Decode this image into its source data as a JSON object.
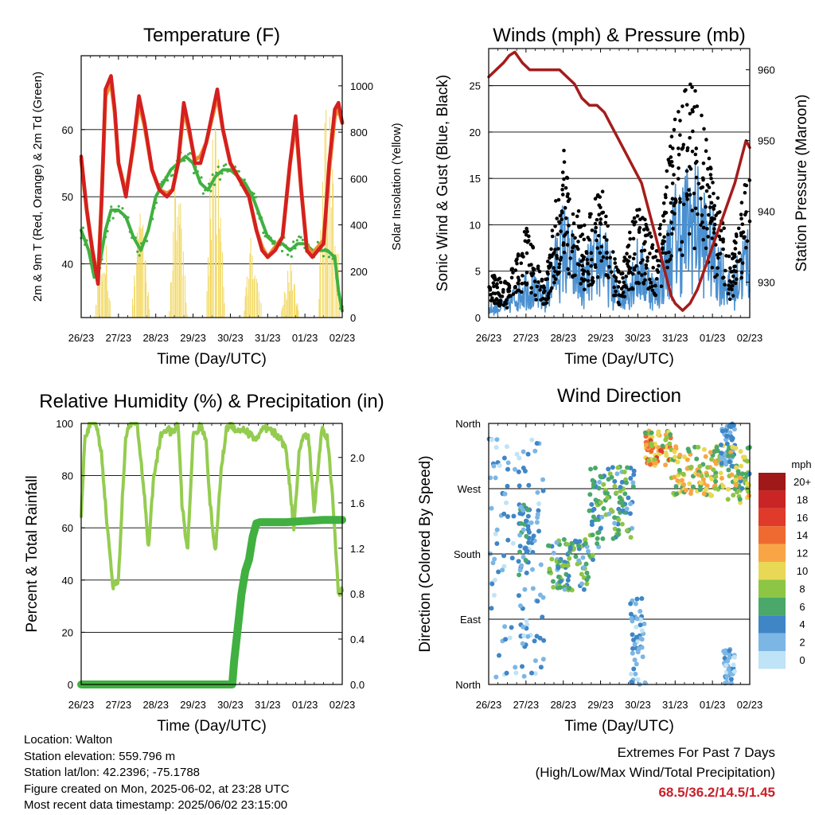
{
  "colors": {
    "t2m": "#d42020",
    "t9m": "#f08a30",
    "td": "#40b040",
    "solar": "#f2d860",
    "wind": "#4a90d0",
    "gust": "#000000",
    "pressure": "#a51c1c",
    "rh": "#94cc50",
    "precip": "#40b040",
    "extreme_values": "#c8202a"
  },
  "x_tick_labels": [
    "26/23",
    "27/23",
    "28/23",
    "29/23",
    "30/23",
    "31/23",
    "01/23",
    "02/23"
  ],
  "info": {
    "location": "Location: Walton",
    "elevation": "Station elevation: 559.796 m",
    "latlon": "Station lat/lon: 42.2396; -75.1788",
    "created": "Figure created on Mon, 2025-06-02, at 23:28 UTC",
    "timestamp": "Most recent data timestamp: 2025/06/02 23:15:00"
  },
  "extremes": {
    "line1": "Extremes For Past 7 Days",
    "line2": "(High/Low/Max Wind/Total Precipitation)",
    "values": "68.5/36.2/14.5/1.45"
  },
  "chart_data": [
    {
      "type": "line",
      "title": "Temperature (F)",
      "xlabel": "Time (Day/UTC)",
      "ylabel": "2m & 9m T (Red, Orange) & 2m Td (Green)",
      "y2label": "Solar Insolation (Yellow)",
      "xlim": [
        0,
        7
      ],
      "ylim": [
        32,
        71
      ],
      "y2lim": [
        0,
        1130
      ],
      "yticks": [
        40,
        50,
        60
      ],
      "y2ticks": [
        0,
        200,
        400,
        600,
        800,
        1000
      ],
      "grid": true,
      "series": [
        {
          "color": "t2m",
          "axis": "left",
          "x": [
            0,
            0.15,
            0.3,
            0.45,
            0.55,
            0.65,
            0.8,
            0.9,
            1,
            1.2,
            1.4,
            1.55,
            1.7,
            1.9,
            2.1,
            2.3,
            2.45,
            2.6,
            2.75,
            2.9,
            3.05,
            3.2,
            3.35,
            3.5,
            3.65,
            3.8,
            4,
            4.3,
            4.5,
            4.7,
            4.85,
            5,
            5.2,
            5.4,
            5.6,
            5.75,
            5.9,
            6.05,
            6.2,
            6.35,
            6.5,
            6.65,
            6.8,
            6.9,
            7
          ],
          "y": [
            56,
            48,
            42,
            37,
            50,
            66,
            68,
            63,
            55,
            50,
            58,
            65,
            61,
            54,
            51,
            50,
            51,
            55,
            64,
            60,
            55,
            55,
            58,
            62,
            66,
            60,
            55,
            52,
            50,
            45,
            42,
            41,
            42,
            44,
            55,
            62,
            51,
            42,
            41,
            42,
            43,
            55,
            63,
            64,
            61
          ]
        },
        {
          "color": "t9m",
          "axis": "left",
          "x": [
            0,
            0.15,
            0.3,
            0.45,
            0.55,
            0.65,
            0.8,
            0.9,
            1,
            1.2,
            1.4,
            1.55,
            1.7,
            1.9,
            2.1,
            2.3,
            2.45,
            2.6,
            2.75,
            2.9,
            3.05,
            3.2,
            3.35,
            3.5,
            3.65,
            3.8,
            4,
            4.3,
            4.5,
            4.7,
            4.85,
            5,
            5.2,
            5.4,
            5.6,
            5.75,
            5.9,
            6.05,
            6.2,
            6.35,
            6.5,
            6.65,
            6.8,
            6.9,
            7
          ],
          "y": [
            55.5,
            48,
            42,
            37.5,
            50,
            65,
            67,
            62.5,
            55,
            50.5,
            57.5,
            64,
            60.5,
            54,
            51,
            50.5,
            51,
            55,
            63,
            59.5,
            55.5,
            56,
            58,
            61.5,
            65,
            60,
            55,
            52,
            50,
            45,
            42.5,
            41,
            42.5,
            44,
            55,
            61,
            51,
            42.5,
            41.5,
            42.5,
            43.5,
            54,
            62,
            63,
            61
          ]
        },
        {
          "color": "td",
          "axis": "left",
          "x": [
            0,
            0.2,
            0.35,
            0.5,
            0.65,
            0.8,
            1,
            1.2,
            1.4,
            1.6,
            1.8,
            2,
            2.2,
            2.4,
            2.6,
            2.8,
            3,
            3.2,
            3.4,
            3.6,
            3.8,
            4,
            4.2,
            4.4,
            4.6,
            4.8,
            5,
            5.2,
            5.4,
            5.6,
            5.8,
            6,
            6.2,
            6.4,
            6.6,
            6.8,
            6.9,
            7
          ],
          "y": [
            45,
            42,
            38,
            40,
            45,
            48,
            48,
            47,
            44,
            42,
            45,
            50,
            52,
            54,
            55,
            56,
            55,
            52,
            51,
            53,
            54,
            54,
            53,
            52,
            50,
            47,
            44,
            43,
            43,
            42,
            43,
            43,
            42,
            42,
            42,
            41,
            36,
            33
          ]
        },
        {
          "color": "solar",
          "axis": "right",
          "days": [
            {
              "start": 0.35,
              "end": 0.8,
              "peak": 420
            },
            {
              "start": 1.35,
              "end": 1.85,
              "peak": 550
            },
            {
              "start": 2.35,
              "end": 2.85,
              "peak": 700
            },
            {
              "start": 3.35,
              "end": 3.85,
              "peak": 1000
            },
            {
              "start": 4.35,
              "end": 4.85,
              "peak": 380
            },
            {
              "start": 5.35,
              "end": 5.85,
              "peak": 250
            },
            {
              "start": 6.35,
              "end": 6.95,
              "peak": 1100
            }
          ]
        }
      ]
    },
    {
      "type": "scatter",
      "title": "Winds (mph) & Pressure (mb)",
      "xlabel": "Time (Day/UTC)",
      "ylabel": "Sonic Wind & Gust (Blue, Black)",
      "y2label": "Station Pressure (Maroon)",
      "xlim": [
        0,
        7
      ],
      "ylim": [
        0,
        29
      ],
      "y2lim": [
        925,
        963
      ],
      "yticks": [
        0,
        5,
        10,
        15,
        20,
        25
      ],
      "y2ticks": [
        930,
        940,
        950,
        960
      ],
      "grid": true,
      "wind_envelope": {
        "x": [
          0,
          0.5,
          1,
          1.5,
          2,
          2.5,
          3,
          3.5,
          4,
          4.5,
          5,
          5.5,
          6,
          6.5,
          7
        ],
        "y": [
          1,
          1.5,
          4,
          2,
          9,
          4,
          8,
          2,
          6,
          3,
          10,
          12,
          8,
          3,
          8
        ]
      },
      "gust_envelope": {
        "x": [
          0,
          0.5,
          1,
          1.5,
          2,
          2.5,
          3,
          3.5,
          4,
          4.5,
          5,
          5.5,
          6,
          6.5,
          7
        ],
        "y": [
          4,
          3,
          8,
          3,
          15,
          8,
          12,
          4,
          10,
          6,
          18,
          21,
          13,
          5,
          14
        ]
      },
      "pressure": {
        "x": [
          0,
          0.2,
          0.4,
          0.55,
          0.7,
          0.9,
          1.1,
          1.3,
          1.5,
          1.7,
          1.9,
          2.1,
          2.3,
          2.5,
          2.7,
          2.9,
          3.1,
          3.3,
          3.5,
          3.7,
          3.9,
          4.1,
          4.3,
          4.5,
          4.7,
          4.8,
          4.9,
          5,
          5.2,
          5.4,
          5.6,
          5.8,
          6,
          6.2,
          6.4,
          6.6,
          6.8,
          6.9,
          7
        ],
        "y": [
          959,
          960,
          961,
          962,
          962.5,
          961,
          960,
          960,
          960,
          960,
          960,
          959,
          958,
          956,
          955,
          955,
          954,
          952,
          950,
          948,
          946,
          944,
          940,
          936,
          932,
          930,
          928,
          927,
          926,
          927,
          929,
          932,
          935,
          938,
          941,
          944,
          948,
          950,
          949
        ]
      }
    },
    {
      "type": "line",
      "title": "Relative Humidity (%) & Precipitation (in)",
      "xlabel": "Time (Day/UTC)",
      "ylabel": "Percent & Total Rainfall",
      "xlim": [
        0,
        7
      ],
      "ylim": [
        0,
        100
      ],
      "y2lim": [
        0,
        2.3
      ],
      "yticks": [
        0,
        20,
        40,
        60,
        80,
        100
      ],
      "y2ticks": [
        0.0,
        0.4,
        0.8,
        1.2,
        1.6,
        2.0
      ],
      "grid": true,
      "series": [
        {
          "color": "rh",
          "axis": "left",
          "x": [
            0,
            0.1,
            0.25,
            0.4,
            0.55,
            0.7,
            0.85,
            1,
            1.1,
            1.2,
            1.35,
            1.5,
            1.7,
            1.8,
            1.95,
            2.15,
            2.3,
            2.45,
            2.6,
            2.7,
            2.85,
            3,
            3.2,
            3.35,
            3.45,
            3.6,
            3.75,
            3.9,
            4,
            4.2,
            4.35,
            4.5,
            4.7,
            4.9,
            5.1,
            5.3,
            5.5,
            5.7,
            5.85,
            6,
            6.1,
            6.25,
            6.45,
            6.6,
            6.75,
            6.9,
            7
          ],
          "y": [
            64,
            95,
            100,
            100,
            88,
            60,
            38,
            40,
            70,
            96,
            100,
            100,
            72,
            52,
            80,
            96,
            98,
            96,
            100,
            70,
            50,
            95,
            99,
            94,
            70,
            50,
            82,
            98,
            100,
            97,
            98,
            96,
            94,
            98,
            97,
            95,
            90,
            60,
            90,
            96,
            94,
            66,
            98,
            95,
            70,
            35,
            36
          ]
        },
        {
          "color": "precip",
          "axis": "right",
          "x": [
            0,
            4.05,
            4.1,
            4.2,
            4.3,
            4.4,
            4.5,
            4.6,
            4.7,
            4.8,
            5,
            5.5,
            6,
            6.5,
            7
          ],
          "y": [
            0,
            0,
            0.2,
            0.5,
            0.8,
            1.0,
            1.1,
            1.3,
            1.42,
            1.43,
            1.43,
            1.43,
            1.44,
            1.45,
            1.45
          ]
        }
      ]
    },
    {
      "type": "scatter",
      "title": "Wind Direction",
      "xlabel": "Time (Day/UTC)",
      "ylabel": "Direction (Colored By Speed)",
      "xlim": [
        0,
        7
      ],
      "ylim": [
        0,
        360
      ],
      "ytick_labels": [
        "North",
        "East",
        "South",
        "West",
        "North"
      ],
      "grid": true,
      "colorbar": {
        "title": "mph",
        "labels": [
          "20+",
          "18",
          "16",
          "14",
          "12",
          "10",
          "8",
          "6",
          "4",
          "2",
          "0"
        ],
        "colors": [
          "#a01818",
          "#c92525",
          "#e03a2a",
          "#ef6a30",
          "#f9a545",
          "#e8d855",
          "#8dc545",
          "#4aa86a",
          "#3f86c6",
          "#7cb6e4",
          "#bfe3f7"
        ]
      },
      "clusters": [
        {
          "x": [
            0,
            1.5
          ],
          "dir": [
            10,
            340
          ],
          "speeds": [
            0,
            5
          ]
        },
        {
          "x": [
            0.8,
            1.1
          ],
          "dir": [
            150,
            250
          ],
          "speeds": [
            2,
            6
          ]
        },
        {
          "x": [
            1.6,
            2.7
          ],
          "dir": [
            130,
            200
          ],
          "speeds": [
            2,
            9
          ]
        },
        {
          "x": [
            2.7,
            3.0
          ],
          "dir": [
            170,
            300
          ],
          "speeds": [
            2,
            8
          ]
        },
        {
          "x": [
            3.0,
            3.9
          ],
          "dir": [
            200,
            300
          ],
          "speeds": [
            2,
            9
          ]
        },
        {
          "x": [
            3.8,
            4.2
          ],
          "dir": [
            0,
            120
          ],
          "speeds": [
            0,
            5
          ]
        },
        {
          "x": [
            4.2,
            4.9
          ],
          "dir": [
            300,
            350
          ],
          "speeds": [
            6,
            16
          ]
        },
        {
          "x": [
            4.9,
            6.3
          ],
          "dir": [
            260,
            330
          ],
          "speeds": [
            5,
            13
          ]
        },
        {
          "x": [
            6.2,
            6.6
          ],
          "dir": [
            300,
            360
          ],
          "speeds": [
            1,
            5
          ]
        },
        {
          "x": [
            6.4,
            7.0
          ],
          "dir": [
            250,
            330
          ],
          "speeds": [
            4,
            12
          ]
        },
        {
          "x": [
            6.3,
            6.6
          ],
          "dir": [
            0,
            50
          ],
          "speeds": [
            0,
            4
          ]
        }
      ]
    }
  ]
}
